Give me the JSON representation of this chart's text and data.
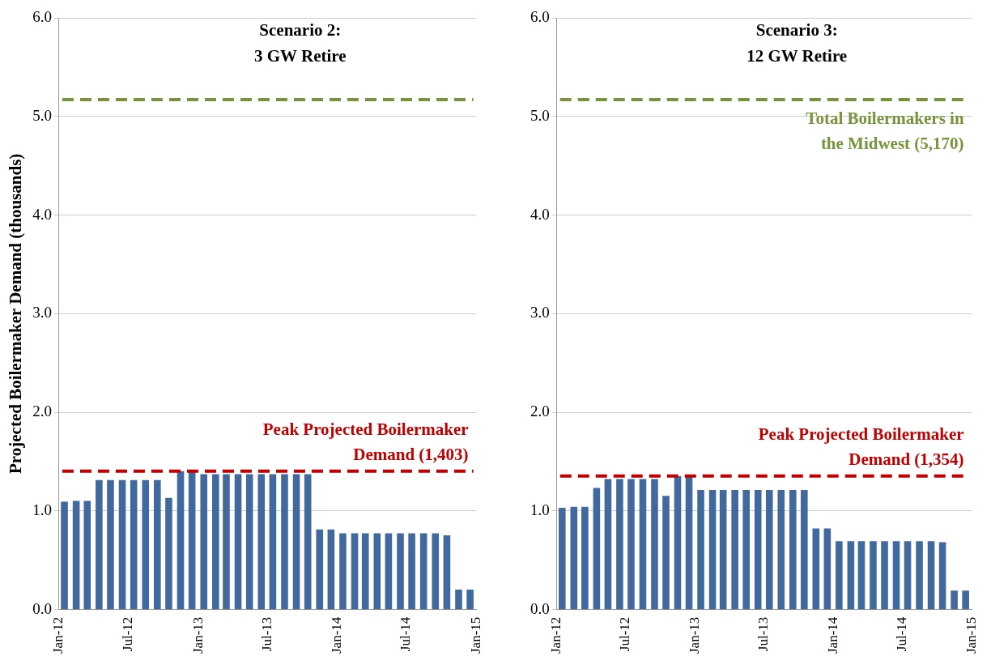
{
  "chart_data": [
    {
      "type": "bar",
      "title": "Scenario 2:\n3 GW Retire",
      "ylabel": "Projected Boilermaker Demand (thousands)",
      "x": [
        "2012-01-15",
        "2012-02-15",
        "2012-03-15",
        "2012-04-15",
        "2012-05-15",
        "2012-06-15",
        "2012-07-15",
        "2012-08-15",
        "2012-09-15",
        "2012-10-15",
        "2012-11-15",
        "2012-12-15",
        "2013-01-15",
        "2013-02-15",
        "2013-03-15",
        "2013-04-15",
        "2013-05-15",
        "2013-06-15",
        "2013-07-15",
        "2013-08-15",
        "2013-09-15",
        "2013-10-15",
        "2013-11-15",
        "2013-12-15",
        "2014-01-15",
        "2014-02-15",
        "2014-03-15",
        "2014-04-15",
        "2014-05-15",
        "2014-06-15",
        "2014-07-15",
        "2014-08-15",
        "2014-09-15",
        "2014-10-15",
        "2014-11-15",
        "2014-12-15"
      ],
      "values": [
        1.09,
        1.1,
        1.1,
        1.31,
        1.31,
        1.31,
        1.31,
        1.31,
        1.31,
        1.13,
        1.4,
        1.4,
        1.37,
        1.37,
        1.37,
        1.37,
        1.37,
        1.37,
        1.37,
        1.37,
        1.37,
        1.37,
        0.81,
        0.81,
        0.77,
        0.77,
        0.77,
        0.77,
        0.77,
        0.77,
        0.77,
        0.77,
        0.77,
        0.75,
        0.2,
        0.2
      ],
      "color": "#41699e",
      "xlim": [
        "2012-01-01",
        "2015-01-01"
      ],
      "xticks": [
        {
          "value": "2012-01-01",
          "label": "Jan-12"
        },
        {
          "value": "2012-07-01",
          "label": "Jul-12"
        },
        {
          "value": "2013-01-01",
          "label": "Jan-13"
        },
        {
          "value": "2013-07-01",
          "label": "Jul-13"
        },
        {
          "value": "2014-01-01",
          "label": "Jan-14"
        },
        {
          "value": "2014-07-01",
          "label": "Jul-14"
        },
        {
          "value": "2015-01-01",
          "label": "Jan-15"
        }
      ],
      "ylim": [
        0,
        6
      ],
      "yticks": [
        {
          "value": 0,
          "label": "0.0"
        },
        {
          "value": 1,
          "label": "1.0"
        },
        {
          "value": 2,
          "label": "2.0"
        },
        {
          "value": 3,
          "label": "3.0"
        },
        {
          "value": 4,
          "label": "4.0"
        },
        {
          "value": 5,
          "label": "5.0"
        },
        {
          "value": 6,
          "label": "6.0"
        }
      ],
      "grid": "y",
      "ref_lines": [
        {
          "axis": "y",
          "value": 5.17,
          "color": "#77933c",
          "line_style": "dashed"
        },
        {
          "axis": "y",
          "value": 1.403,
          "label": "Peak Projected Boilermaker\nDemand (1,403)",
          "color": "#c00000",
          "line_style": "dashed"
        }
      ]
    },
    {
      "type": "bar",
      "title": "Scenario 3:\n12 GW Retire",
      "x": [
        "2012-01-15",
        "2012-02-15",
        "2012-03-15",
        "2012-04-15",
        "2012-05-15",
        "2012-06-15",
        "2012-07-15",
        "2012-08-15",
        "2012-09-15",
        "2012-10-15",
        "2012-11-15",
        "2012-12-15",
        "2013-01-15",
        "2013-02-15",
        "2013-03-15",
        "2013-04-15",
        "2013-05-15",
        "2013-06-15",
        "2013-07-15",
        "2013-08-15",
        "2013-09-15",
        "2013-10-15",
        "2013-11-15",
        "2013-12-15",
        "2014-01-15",
        "2014-02-15",
        "2014-03-15",
        "2014-04-15",
        "2014-05-15",
        "2014-06-15",
        "2014-07-15",
        "2014-08-15",
        "2014-09-15",
        "2014-10-15",
        "2014-11-15",
        "2014-12-15"
      ],
      "values": [
        1.03,
        1.04,
        1.04,
        1.23,
        1.32,
        1.32,
        1.32,
        1.32,
        1.32,
        1.15,
        1.35,
        1.35,
        1.21,
        1.21,
        1.21,
        1.21,
        1.21,
        1.21,
        1.21,
        1.21,
        1.21,
        1.21,
        0.82,
        0.82,
        0.69,
        0.69,
        0.69,
        0.69,
        0.69,
        0.69,
        0.69,
        0.69,
        0.69,
        0.68,
        0.19,
        0.19
      ],
      "color": "#41699e",
      "xlim": [
        "2012-01-01",
        "2015-01-01"
      ],
      "xticks": [
        {
          "value": "2012-01-01",
          "label": "Jan-12"
        },
        {
          "value": "2012-07-01",
          "label": "Jul-12"
        },
        {
          "value": "2013-01-01",
          "label": "Jan-13"
        },
        {
          "value": "2013-07-01",
          "label": "Jul-13"
        },
        {
          "value": "2014-01-01",
          "label": "Jan-14"
        },
        {
          "value": "2014-07-01",
          "label": "Jul-14"
        },
        {
          "value": "2015-01-01",
          "label": "Jan-15"
        }
      ],
      "ylim": [
        0,
        6
      ],
      "yticks": [
        {
          "value": 0,
          "label": "0.0"
        },
        {
          "value": 1,
          "label": "1.0"
        },
        {
          "value": 2,
          "label": "2.0"
        },
        {
          "value": 3,
          "label": "3.0"
        },
        {
          "value": 4,
          "label": "4.0"
        },
        {
          "value": 5,
          "label": "5.0"
        },
        {
          "value": 6,
          "label": "6.0"
        }
      ],
      "grid": "y",
      "ref_lines": [
        {
          "axis": "y",
          "value": 5.17,
          "label": "Total Boilermakers in\nthe Midwest (5,170)",
          "color": "#77933c",
          "line_style": "dashed"
        },
        {
          "axis": "y",
          "value": 1.354,
          "label": "Peak Projected Boilermaker\nDemand (1,354)",
          "color": "#c00000",
          "line_style": "dashed"
        }
      ]
    }
  ]
}
